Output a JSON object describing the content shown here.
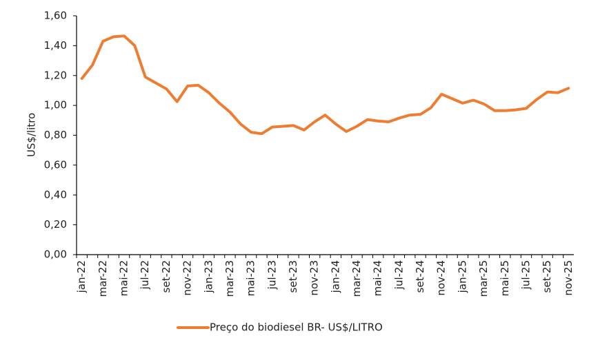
{
  "chart_data": {
    "type": "line",
    "y_label": "US$/litro",
    "categories": [
      "jan-22",
      null,
      "mar-22",
      null,
      "mai-22",
      null,
      "jul-22",
      null,
      "set-22",
      null,
      "nov-22",
      null,
      "jan-23",
      null,
      "mar-23",
      null,
      "mai-23",
      null,
      "jul-23",
      null,
      "set-23",
      null,
      "nov-23",
      null,
      "jan-24",
      null,
      "mar-24",
      null,
      "mai-24",
      null,
      "jul-24",
      null,
      "set-24",
      null,
      "nov-24",
      null,
      "jan-25",
      null,
      "mar-25",
      null,
      "mai-25",
      null,
      "jul-25",
      null,
      "set-25",
      null,
      "nov-25"
    ],
    "series": [
      {
        "name": "Preço do biodiesel BR- US$/LITRO",
        "color": "#ed7d31",
        "values": [
          1.18,
          1.27,
          1.43,
          1.46,
          1.465,
          1.4,
          1.19,
          1.15,
          1.11,
          1.025,
          1.13,
          1.135,
          1.085,
          1.015,
          0.955,
          0.875,
          0.82,
          0.81,
          0.855,
          0.86,
          0.865,
          0.835,
          0.89,
          0.935,
          0.875,
          0.825,
          0.86,
          0.905,
          0.895,
          0.89,
          0.915,
          0.935,
          0.94,
          0.985,
          1.075,
          1.045,
          1.015,
          1.035,
          1.01,
          0.965,
          0.965,
          0.97,
          0.98,
          1.04,
          1.09,
          1.085,
          1.115
        ]
      }
    ],
    "ylim": [
      0,
      1.6
    ],
    "yticks": [
      {
        "value": 0,
        "label": "0,00"
      },
      {
        "value": 0.2,
        "label": "0,20"
      },
      {
        "value": 0.4,
        "label": "0,40"
      },
      {
        "value": 0.6,
        "label": "0,60"
      },
      {
        "value": 0.8,
        "label": "0,80"
      },
      {
        "value": 1.0,
        "label": "1,00"
      },
      {
        "value": 1.2,
        "label": "1,20"
      },
      {
        "value": 1.4,
        "label": "1,40"
      },
      {
        "value": 1.6,
        "label": "1,60"
      }
    ],
    "grid": false,
    "legend": "bottom"
  }
}
